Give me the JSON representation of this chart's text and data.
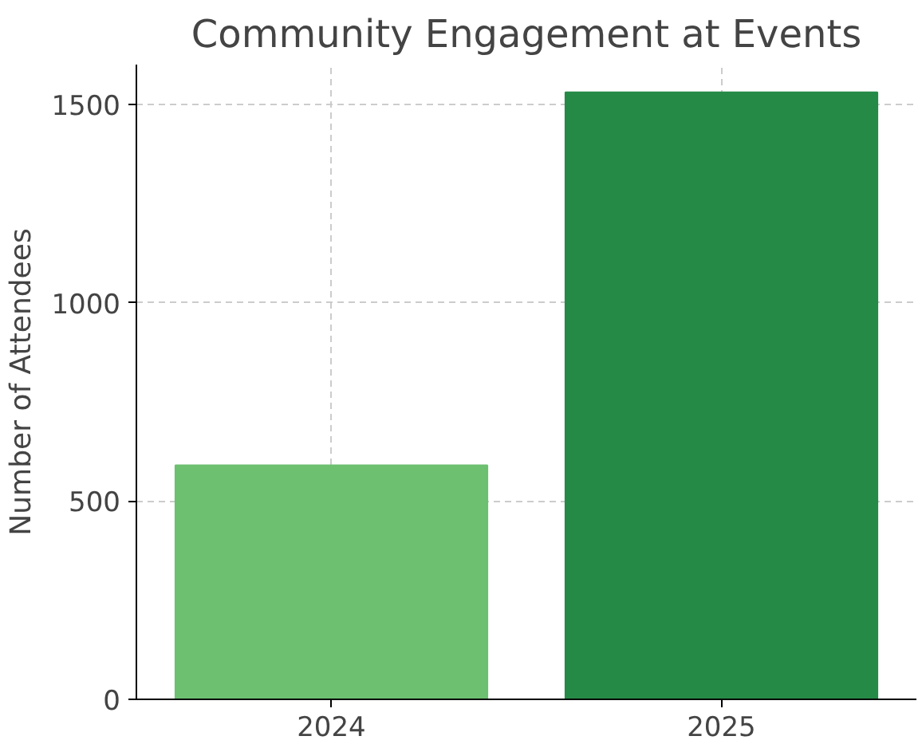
{
  "chart_data": {
    "type": "bar",
    "title": "Community Engagement at Events",
    "ylabel": "Number of Attendees",
    "categories": [
      "2024",
      "2025"
    ],
    "values": [
      590,
      1530
    ],
    "colors": [
      "#6cc070",
      "#268a47"
    ],
    "ylim": [
      0,
      1600
    ],
    "yticks": [
      0,
      500,
      1000,
      1500
    ],
    "grid": true
  }
}
